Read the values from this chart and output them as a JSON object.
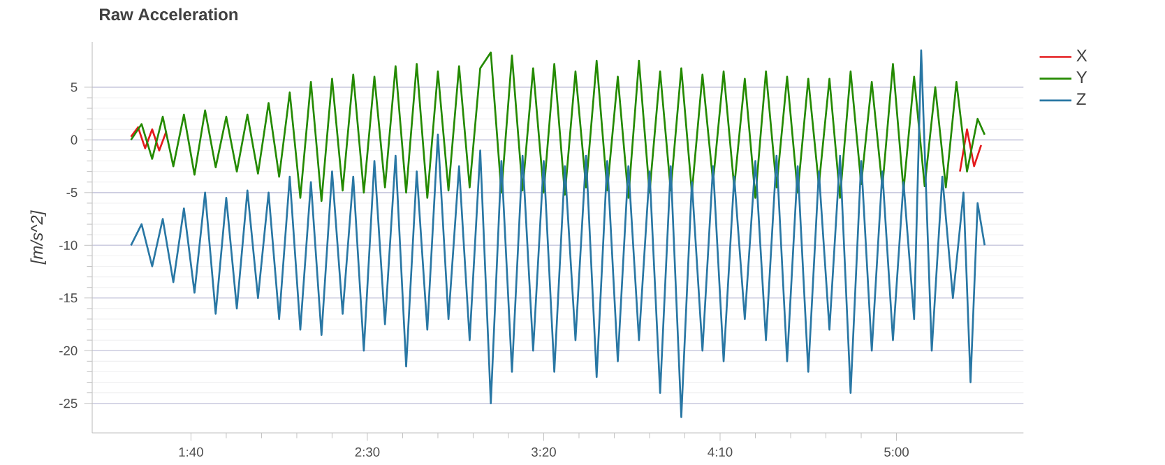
{
  "chart_data": {
    "type": "line",
    "title": "Raw Acceleration",
    "ylabel": "[m/s^2]",
    "xlim": [
      72,
      336
    ],
    "ylim": [
      -27.8,
      9.3
    ],
    "xticks": [
      {
        "value": 100,
        "label": "1:40"
      },
      {
        "value": 150,
        "label": "2:30"
      },
      {
        "value": 200,
        "label": "3:20"
      },
      {
        "value": 250,
        "label": "4:10"
      },
      {
        "value": 300,
        "label": "5:00"
      }
    ],
    "yticks": [
      -25,
      -20,
      -15,
      -10,
      -5,
      0,
      5
    ],
    "grid": "y",
    "legend": "top right",
    "marker": "none",
    "line_style": "solid",
    "series": [
      {
        "name": "X",
        "color": "#e41a1c",
        "x": [
          83,
          85,
          87,
          89,
          91,
          93,
          200,
          318,
          320,
          322,
          324
        ],
        "values": [
          0.3,
          1.2,
          -0.8,
          1.0,
          -1.0,
          0.8,
          null,
          -3,
          1,
          -2.5,
          -0.5
        ]
      },
      {
        "name": "Y",
        "color": "#248a00",
        "x": [
          83,
          86,
          89,
          92,
          95,
          98,
          101,
          104,
          107,
          110,
          113,
          116,
          119,
          122,
          125,
          128,
          131,
          134,
          137,
          140,
          143,
          146,
          149,
          152,
          155,
          158,
          161,
          164,
          167,
          170,
          173,
          176,
          179,
          182,
          185,
          188,
          191,
          194,
          197,
          200,
          203,
          206,
          209,
          212,
          215,
          218,
          221,
          224,
          227,
          230,
          233,
          236,
          239,
          242,
          245,
          248,
          251,
          254,
          257,
          260,
          263,
          266,
          269,
          272,
          275,
          278,
          281,
          284,
          287,
          290,
          293,
          296,
          299,
          302,
          305,
          308,
          311,
          314,
          317,
          320,
          323,
          325
        ],
        "values": [
          0,
          1.5,
          -1.8,
          2.2,
          -2.5,
          2.4,
          -3.3,
          2.8,
          -2.6,
          2.2,
          -3,
          2.4,
          -3.2,
          3.5,
          -3.5,
          4.5,
          -5.5,
          5.5,
          -5.8,
          5.8,
          -4.8,
          6.2,
          -5,
          6,
          -4.5,
          7,
          -5,
          7.2,
          -5.5,
          6.5,
          -4.8,
          7,
          -4.5,
          6.8,
          8.3,
          -5,
          8.0,
          -4.8,
          6.8,
          -5,
          7.2,
          -5.2,
          6.5,
          -4.5,
          7.5,
          -4.8,
          6,
          -5.5,
          7.5,
          -5,
          6.5,
          -4.8,
          6.8,
          -5,
          6.2,
          -4,
          6.5,
          -4.5,
          5.8,
          -5.5,
          6.5,
          -4.5,
          6,
          -5,
          5.8,
          -4.3,
          5.8,
          -5.5,
          6.5,
          -4.2,
          5.5,
          -4.5,
          7.2,
          -4.8,
          6,
          -4.4,
          5,
          -4.5,
          5.5,
          -3,
          2,
          0.5
        ]
      },
      {
        "name": "Z",
        "color": "#2977a4",
        "x": [
          83,
          86,
          89,
          92,
          95,
          98,
          101,
          104,
          107,
          110,
          113,
          116,
          119,
          122,
          125,
          128,
          131,
          134,
          137,
          140,
          143,
          146,
          149,
          152,
          155,
          158,
          161,
          164,
          167,
          170,
          173,
          176,
          179,
          182,
          185,
          188,
          191,
          194,
          197,
          200,
          203,
          206,
          209,
          212,
          215,
          218,
          221,
          224,
          227,
          230,
          233,
          236,
          239,
          242,
          245,
          248,
          251,
          254,
          257,
          260,
          263,
          266,
          269,
          272,
          275,
          278,
          281,
          284,
          287,
          290,
          293,
          296,
          299,
          302,
          305,
          307,
          310,
          313,
          316,
          319,
          321,
          323,
          325
        ],
        "values": [
          -10,
          -8,
          -12,
          -7.5,
          -13.5,
          -6.5,
          -14.5,
          -5,
          -16.5,
          -5.5,
          -16,
          -4.8,
          -15,
          -5,
          -17,
          -3.5,
          -18,
          -4,
          -18.5,
          -3,
          -16.5,
          -3.5,
          -20,
          -2,
          -17.5,
          -1.5,
          -21.5,
          -3,
          -18,
          0.5,
          -17,
          -2.5,
          -19,
          -1,
          -25,
          -2,
          -22,
          -1.5,
          -20,
          -2,
          -22,
          -2.5,
          -19,
          -1.5,
          -22.5,
          -2,
          -21,
          -2.5,
          -19,
          -3,
          -24,
          -2.5,
          -26.3,
          -4,
          -20,
          -2.5,
          -21,
          -3.5,
          -17,
          -2,
          -19,
          -1.5,
          -21,
          -2.5,
          -22,
          -3,
          -18,
          -1.5,
          -24,
          -2,
          -20,
          -3,
          -19,
          -4,
          -17,
          8.5,
          -20,
          -3.5,
          -15,
          -5,
          -23,
          -6,
          -10
        ]
      }
    ]
  }
}
